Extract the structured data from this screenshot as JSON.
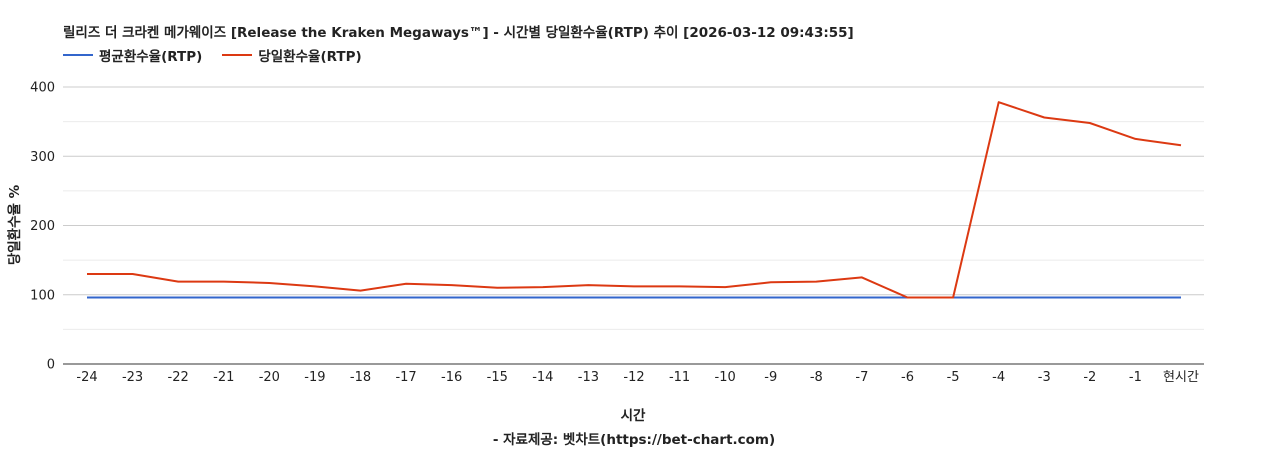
{
  "chart_data": {
    "type": "line",
    "title": "릴리즈 더 크라켄 메가웨이즈 [Release the Kraken Megaways™] - 시간별 당일환수율(RTP) 추이 [2026-03-12 09:43:55]",
    "xlabel": "시간",
    "ylabel": "당일환수율 %",
    "categories": [
      "-24",
      "-23",
      "-22",
      "-21",
      "-20",
      "-19",
      "-18",
      "-17",
      "-16",
      "-15",
      "-14",
      "-13",
      "-12",
      "-11",
      "-10",
      "-9",
      "-8",
      "-7",
      "-6",
      "-5",
      "-4",
      "-3",
      "-2",
      "-1",
      "현시간"
    ],
    "ylim": [
      0,
      400
    ],
    "yticks": [
      0,
      100,
      200,
      300,
      400
    ],
    "grid": true,
    "legend_position": "top-left",
    "series": [
      {
        "name": "평균환수율(RTP)",
        "color": "#3366cc",
        "values": [
          96,
          96,
          96,
          96,
          96,
          96,
          96,
          96,
          96,
          96,
          96,
          96,
          96,
          96,
          96,
          96,
          96,
          96,
          96,
          96,
          96,
          96,
          96,
          96,
          96
        ]
      },
      {
        "name": "당일환수율(RTP)",
        "color": "#dc3912",
        "values": [
          130,
          130,
          119,
          119,
          117,
          112,
          106,
          116,
          114,
          110,
          111,
          114,
          112,
          112,
          111,
          118,
          119,
          125,
          96,
          96,
          378,
          356,
          348,
          325,
          316
        ]
      }
    ],
    "source": "- 자료제공: 벳차트(https://bet-chart.com)"
  }
}
